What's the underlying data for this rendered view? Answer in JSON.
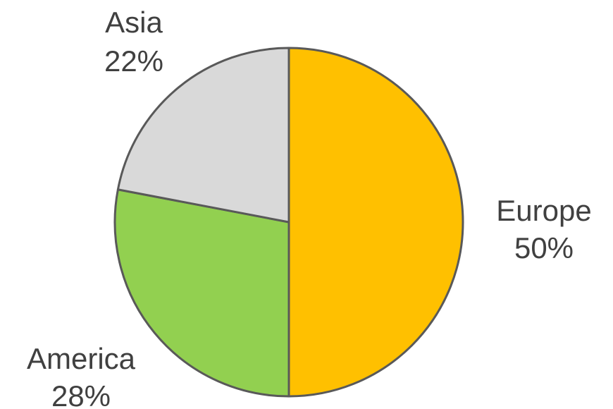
{
  "chart_data": {
    "type": "pie",
    "title": "",
    "start_angle_deg": 0,
    "direction": "clockwise",
    "slices": [
      {
        "label": "Europe",
        "value": 50,
        "value_label": "50%",
        "color": "#FFC000",
        "label_side": "right"
      },
      {
        "label": "America",
        "value": 28,
        "value_label": "28%",
        "color": "#92D050",
        "label_side": "bottom-left"
      },
      {
        "label": "Asia",
        "value": 22,
        "value_label": "22%",
        "color": "#D9D9D9",
        "label_side": "top-left"
      }
    ],
    "border_color": "#595959",
    "label_color": "#404040",
    "legend": "none"
  }
}
